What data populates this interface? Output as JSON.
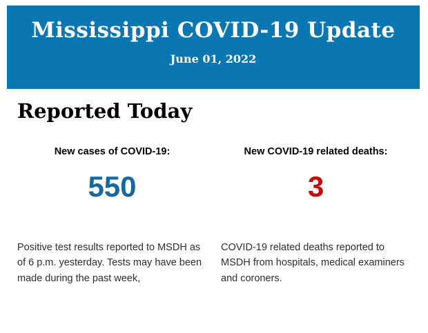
{
  "header": {
    "title": "Mississippi COVID-19 Update",
    "date": "June 01, 2022",
    "background_color": "#0b77b2",
    "text_color": "#ffffff"
  },
  "section": {
    "heading": "Reported Today"
  },
  "stats": [
    {
      "label": "New cases of COVID-19:",
      "value": "550",
      "value_color": "#17699d",
      "description": "Positive test results reported to MSDH as of 6 p.m. yesterday. Tests may have been made during the past week,"
    },
    {
      "label": "New COVID-19 related deaths:",
      "value": "3",
      "value_color": "#c00d0d",
      "description": "COVID-19 related deaths reported to MSDH from hospitals, medical examiners and coroners."
    }
  ]
}
